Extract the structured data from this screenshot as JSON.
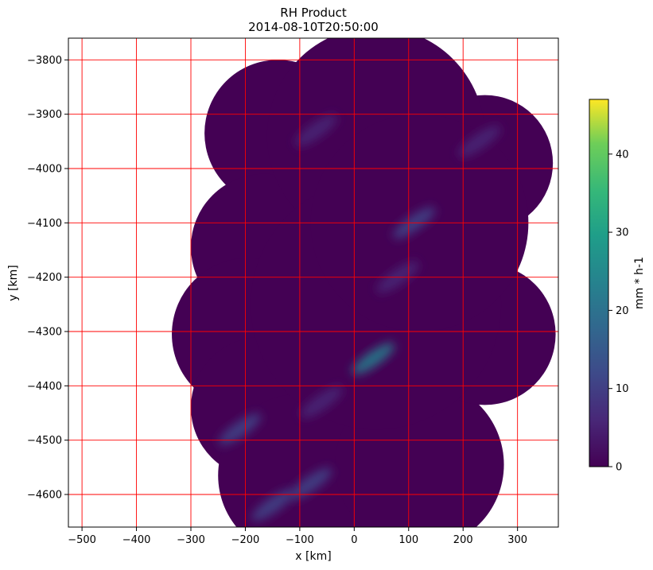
{
  "chart_data": {
    "type": "heatmap",
    "title": "RH Product",
    "subtitle": "2014-08-10T20:50:00",
    "xlabel": "x [km]",
    "ylabel": "y [km]",
    "xlim": [
      -525,
      375
    ],
    "ylim": [
      -4660,
      -3760
    ],
    "xticks": [
      -500,
      -400,
      -300,
      -200,
      -100,
      0,
      100,
      200,
      300
    ],
    "yticks": [
      -3800,
      -3900,
      -4000,
      -4100,
      -4200,
      -4300,
      -4400,
      -4500,
      -4600
    ],
    "grid": true,
    "grid_color": "#ff0000",
    "colormap": "viridis",
    "colorbar": {
      "label": "mm * h-1",
      "range": [
        0,
        47
      ],
      "ticks": [
        0,
        10,
        20,
        30,
        40
      ]
    },
    "background_value": 0,
    "radar_coverage": [
      {
        "cx": -140,
        "cy": -3935,
        "r": 135
      },
      {
        "cx": -165,
        "cy": -4145,
        "r": 135
      },
      {
        "cx": -195,
        "cy": -4305,
        "r": 140
      },
      {
        "cx": -170,
        "cy": -4440,
        "r": 130
      },
      {
        "cx": -100,
        "cy": -4565,
        "r": 150
      },
      {
        "cx": 120,
        "cy": -4545,
        "r": 155
      },
      {
        "cx": 240,
        "cy": -4305,
        "r": 130
      },
      {
        "cx": 240,
        "cy": -3990,
        "r": 125
      },
      {
        "cx": 40,
        "cy": -3940,
        "r": 200
      },
      {
        "cx": 40,
        "cy": -4250,
        "r": 230
      },
      {
        "cx": 120,
        "cy": -4100,
        "r": 200
      }
    ],
    "precipitation_cells": [
      {
        "x": -70,
        "y": -3930,
        "value": 8
      },
      {
        "x": 230,
        "y": -3950,
        "value": 7
      },
      {
        "x": 110,
        "y": -4100,
        "value": 9
      },
      {
        "x": 80,
        "y": -4200,
        "value": 8
      },
      {
        "x": 35,
        "y": -4350,
        "value": 24
      },
      {
        "x": -60,
        "y": -4430,
        "value": 6
      },
      {
        "x": -210,
        "y": -4480,
        "value": 9
      },
      {
        "x": -80,
        "y": -4580,
        "value": 12
      },
      {
        "x": -150,
        "y": -4620,
        "value": 10
      }
    ]
  }
}
